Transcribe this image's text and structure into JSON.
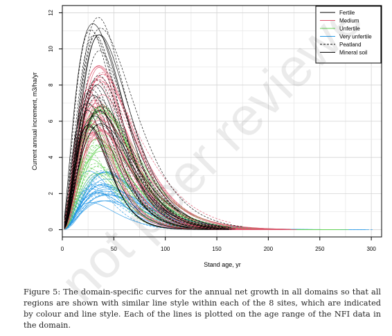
{
  "chart_data": {
    "type": "line",
    "xlabel": "Stand age, yr",
    "ylabel": "Current annual increment, m3/ha/yr",
    "xlim": [
      0,
      310
    ],
    "ylim": [
      -0.4,
      12.4
    ],
    "x_ticks": [
      "0",
      "50",
      "100",
      "150",
      "200",
      "250",
      "300"
    ],
    "y_ticks": [
      "0",
      "2",
      "4",
      "6",
      "8",
      "10",
      "12"
    ],
    "grid": true,
    "legend_position": "top-right",
    "legend": [
      {
        "label": "Fertile",
        "color": "#000000",
        "dash": "solid"
      },
      {
        "label": "Medium",
        "color": "#df536b",
        "dash": "solid"
      },
      {
        "label": "Unfertile",
        "color": "#61d04f",
        "dash": "solid"
      },
      {
        "label": "Very unfertile",
        "color": "#2297e6",
        "dash": "solid"
      },
      {
        "label": "Peatland",
        "color": "#000000",
        "dash": "dashed"
      },
      {
        "label": "Mineral soil",
        "color": "#000000",
        "dash": "solid"
      }
    ],
    "groups": [
      {
        "legend": "Fertile",
        "color": "#000000",
        "peak_age_range": [
          24,
          38
        ],
        "peak_range": [
          5.5,
          12.0
        ],
        "end_age_range": [
          110,
          180
        ],
        "count": 28
      },
      {
        "legend": "Medium",
        "color": "#df536b",
        "peak_age_range": [
          24,
          40
        ],
        "peak_range": [
          5.0,
          9.5
        ],
        "end_age_range": [
          150,
          230
        ],
        "count": 34
      },
      {
        "legend": "Unfertile",
        "color": "#61d04f",
        "peak_age_range": [
          24,
          42
        ],
        "peak_range": [
          3.0,
          7.0
        ],
        "end_age_range": [
          170,
          280
        ],
        "count": 30
      },
      {
        "legend": "Very unfertile",
        "color": "#2297e6",
        "peak_age_range": [
          26,
          45
        ],
        "peak_range": [
          1.5,
          3.4
        ],
        "end_age_range": [
          200,
          310
        ],
        "count": 30
      }
    ]
  },
  "caption": "Figure 5: The domain-specific curves for the annual net growth in all domains so that all regions are shown with similar line style within each of the 8 sites, which are indicated by colour and line style. Each of the lines is plotted on the age range of the NFI data in the domain.",
  "watermark": "not peer reviewed"
}
